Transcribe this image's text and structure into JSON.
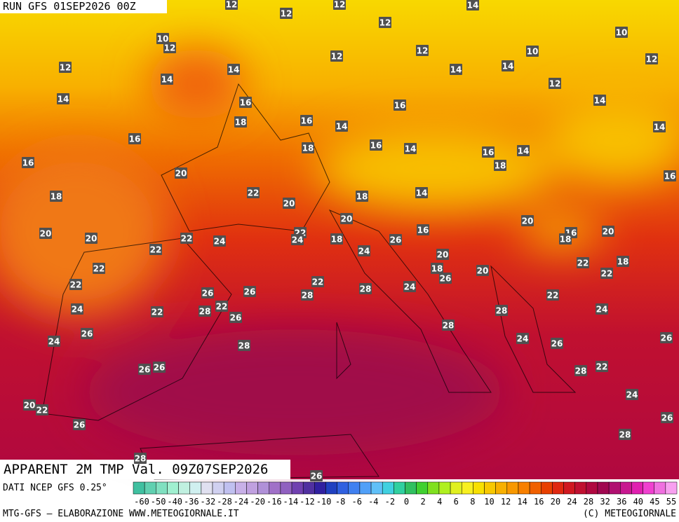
{
  "header": {
    "run": "RUN GFS 01SEP2026 00Z",
    "title": "APPARENT 2M TMP Val. 09Z07SEP2026"
  },
  "map": {
    "labels": [
      12,
      12,
      12,
      12,
      14,
      10,
      12,
      10,
      12,
      12,
      12,
      10,
      12,
      14,
      14,
      14,
      14,
      12,
      14,
      16,
      16,
      14,
      18,
      16,
      14,
      14,
      16,
      18,
      16,
      14,
      16,
      14,
      16,
      18,
      20,
      16,
      18,
      22,
      18,
      14,
      20,
      20,
      20,
      16,
      20,
      20,
      20,
      22,
      24,
      22,
      24,
      18,
      26,
      16,
      18,
      22,
      24,
      22,
      20,
      20,
      22,
      18,
      18,
      22,
      22,
      28,
      24,
      26,
      22,
      22,
      26,
      26,
      28,
      24,
      22,
      28,
      22,
      26,
      28,
      24,
      26,
      28,
      24,
      28,
      24,
      26,
      26,
      26,
      26,
      28,
      22,
      24,
      20,
      22,
      26,
      26,
      28,
      28,
      26
    ]
  },
  "legend": {
    "source": "DATI NCEP GFS 0.25°",
    "colors": [
      "#40c0a0",
      "#60d0b0",
      "#80e0c0",
      "#a0f0d0",
      "#c0f0e0",
      "#d0f0f0",
      "#e0e0f0",
      "#d0d0f0",
      "#c0c0f0",
      "#c8b0e8",
      "#c0a0e0",
      "#b090d8",
      "#a070c8",
      "#9060c0",
      "#7040b0",
      "#5030a0",
      "#3020a0",
      "#2040c0",
      "#3060e0",
      "#4080f0",
      "#50a0f8",
      "#60c0f8",
      "#40d0e0",
      "#30d0a0",
      "#30c060",
      "#40d030",
      "#80e020",
      "#b0f020",
      "#e0f020",
      "#f8f020",
      "#f8e000",
      "#f8c800",
      "#f8b000",
      "#f89800",
      "#f88000",
      "#f06000",
      "#e84000",
      "#e02810",
      "#d01820",
      "#c01030",
      "#b00840",
      "#a00850",
      "#b01070",
      "#c81890",
      "#e020b0",
      "#f040d0",
      "#f070e0",
      "#f8a0f0"
    ],
    "ticks": [
      -60,
      -50,
      -40,
      -36,
      -32,
      -28,
      -24,
      -20,
      -16,
      -14,
      -12,
      -10,
      -8,
      -6,
      -4,
      -2,
      0,
      2,
      4,
      6,
      8,
      10,
      12,
      14,
      16,
      20,
      24,
      28,
      32,
      36,
      40,
      45,
      55
    ]
  },
  "footer": {
    "left": "MTG-GFS — ELABORAZIONE WWW.METEOGIORNALE.IT",
    "right": "(C) METEOGIORNALE"
  }
}
